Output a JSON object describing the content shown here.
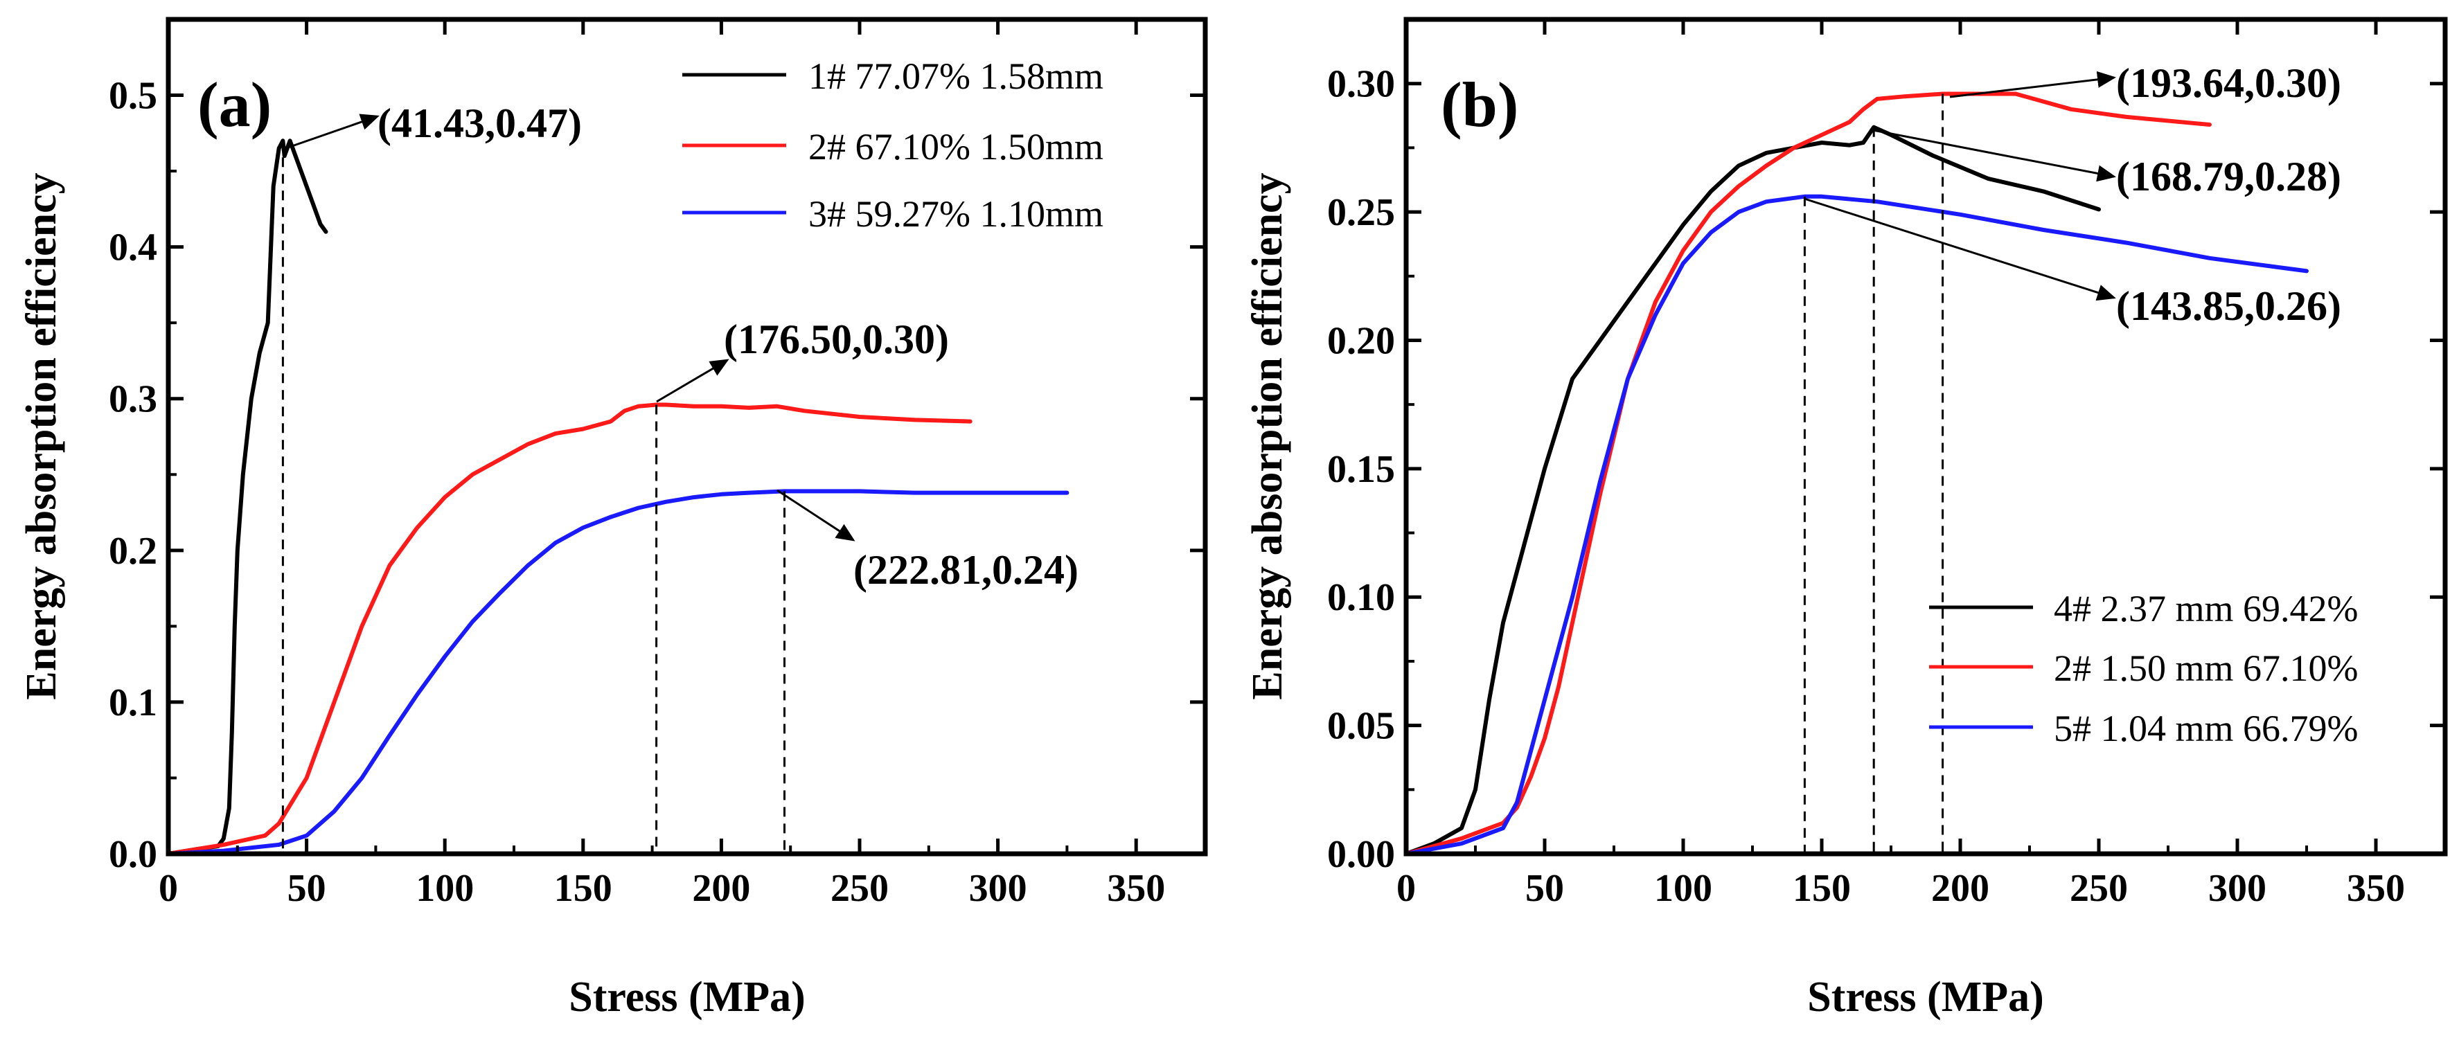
{
  "chart_data": [
    {
      "type": "line",
      "panel_label": "(a)",
      "xlabel": "Stress (MPa)",
      "ylabel": "Energy absorption efficiency",
      "xlim": [
        0,
        375
      ],
      "ylim": [
        0,
        0.55
      ],
      "xticks": [
        0,
        50,
        100,
        150,
        200,
        250,
        300,
        350
      ],
      "yticks": [
        0.0,
        0.1,
        0.2,
        0.3,
        0.4,
        0.5
      ],
      "x_tick_labels": [
        "0",
        "50",
        "100",
        "150",
        "200",
        "250",
        "300",
        "350"
      ],
      "y_tick_labels": [
        "0.0",
        "0.1",
        "0.2",
        "0.3",
        "0.4",
        "0.5"
      ],
      "legend_position": "top-right",
      "series": [
        {
          "name": "1# 77.07% 1.58mm",
          "color": "#000000",
          "x": [
            0,
            10,
            18,
            20,
            22,
            23,
            24,
            25,
            27,
            30,
            33,
            36,
            38,
            40,
            41.43,
            42,
            44,
            46,
            48,
            50,
            52,
            55,
            57
          ],
          "y": [
            0,
            0.003,
            0.005,
            0.01,
            0.03,
            0.08,
            0.15,
            0.2,
            0.25,
            0.3,
            0.33,
            0.35,
            0.44,
            0.465,
            0.47,
            0.46,
            0.47,
            0.46,
            0.45,
            0.44,
            0.43,
            0.415,
            0.41
          ]
        },
        {
          "name": "2# 67.10% 1.50mm",
          "color": "#ff1a1a",
          "x": [
            0,
            20,
            35,
            40,
            45,
            50,
            55,
            60,
            70,
            80,
            90,
            100,
            110,
            120,
            130,
            140,
            150,
            160,
            165,
            170,
            176.5,
            180,
            190,
            200,
            210,
            220,
            230,
            250,
            270,
            290
          ],
          "y": [
            0,
            0.006,
            0.012,
            0.02,
            0.035,
            0.05,
            0.075,
            0.1,
            0.15,
            0.19,
            0.215,
            0.235,
            0.25,
            0.26,
            0.27,
            0.277,
            0.28,
            0.285,
            0.292,
            0.295,
            0.296,
            0.296,
            0.295,
            0.295,
            0.294,
            0.295,
            0.292,
            0.288,
            0.286,
            0.285
          ]
        },
        {
          "name": "3# 59.27% 1.10mm",
          "color": "#1a1aff",
          "x": [
            0,
            20,
            40,
            50,
            60,
            70,
            80,
            90,
            100,
            110,
            120,
            130,
            140,
            150,
            160,
            170,
            180,
            190,
            200,
            210,
            222.81,
            230,
            250,
            270,
            290,
            310,
            325
          ],
          "y": [
            0,
            0.002,
            0.006,
            0.012,
            0.028,
            0.05,
            0.078,
            0.105,
            0.13,
            0.153,
            0.172,
            0.19,
            0.205,
            0.215,
            0.222,
            0.228,
            0.232,
            0.235,
            0.237,
            0.238,
            0.239,
            0.239,
            0.239,
            0.238,
            0.238,
            0.238,
            0.238
          ]
        }
      ],
      "annotations": [
        {
          "label": "(41.43,0.47)",
          "x": 41.43,
          "y": 0.47
        },
        {
          "label": "(176.50,0.30)",
          "x": 176.5,
          "y": 0.296
        },
        {
          "label": "(222.81,0.24)",
          "x": 222.81,
          "y": 0.239
        }
      ]
    },
    {
      "type": "line",
      "panel_label": "(b)",
      "xlabel": "Stress (MPa)",
      "ylabel": "Energy absorption efficiency",
      "xlim": [
        0,
        375
      ],
      "ylim": [
        0,
        0.325
      ],
      "xticks": [
        0,
        50,
        100,
        150,
        200,
        250,
        300,
        350
      ],
      "yticks": [
        0.0,
        0.05,
        0.1,
        0.15,
        0.2,
        0.25,
        0.3
      ],
      "x_tick_labels": [
        "0",
        "50",
        "100",
        "150",
        "200",
        "250",
        "300",
        "350"
      ],
      "y_tick_labels": [
        "0.00",
        "0.05",
        "0.10",
        "0.15",
        "0.20",
        "0.25",
        "0.30"
      ],
      "legend_position": "bottom-right",
      "series": [
        {
          "name": "4# 2.37 mm 69.42%",
          "color": "#000000",
          "x": [
            0,
            10,
            20,
            25,
            30,
            35,
            40,
            50,
            60,
            70,
            80,
            90,
            100,
            110,
            120,
            130,
            140,
            150,
            160,
            165,
            168.79,
            175,
            190,
            210,
            230,
            250
          ],
          "y": [
            0,
            0.004,
            0.01,
            0.025,
            0.06,
            0.09,
            0.11,
            0.15,
            0.185,
            0.2,
            0.215,
            0.23,
            0.245,
            0.258,
            0.268,
            0.273,
            0.275,
            0.277,
            0.276,
            0.277,
            0.283,
            0.28,
            0.272,
            0.263,
            0.258,
            0.251
          ]
        },
        {
          "name": "2# 1.50 mm 67.10%",
          "color": "#ff1a1a",
          "x": [
            0,
            20,
            35,
            40,
            45,
            50,
            55,
            60,
            70,
            80,
            90,
            100,
            110,
            120,
            130,
            140,
            150,
            160,
            165,
            170,
            180,
            193.64,
            200,
            220,
            240,
            260,
            290
          ],
          "y": [
            0,
            0.006,
            0.012,
            0.018,
            0.03,
            0.045,
            0.065,
            0.09,
            0.14,
            0.185,
            0.215,
            0.235,
            0.25,
            0.26,
            0.268,
            0.275,
            0.28,
            0.285,
            0.29,
            0.294,
            0.295,
            0.296,
            0.296,
            0.296,
            0.29,
            0.287,
            0.284
          ]
        },
        {
          "name": "5# 1.04 mm 66.79%",
          "color": "#1a1aff",
          "x": [
            0,
            20,
            35,
            40,
            45,
            50,
            55,
            60,
            70,
            80,
            90,
            100,
            110,
            120,
            130,
            143.85,
            150,
            170,
            200,
            230,
            260,
            290,
            325
          ],
          "y": [
            0,
            0.004,
            0.01,
            0.02,
            0.04,
            0.06,
            0.08,
            0.1,
            0.145,
            0.185,
            0.21,
            0.23,
            0.242,
            0.25,
            0.254,
            0.256,
            0.256,
            0.254,
            0.249,
            0.243,
            0.238,
            0.232,
            0.227
          ]
        }
      ],
      "annotations": [
        {
          "label": "(193.64,0.30)",
          "x": 193.64,
          "y": 0.296
        },
        {
          "label": "(168.79,0.28)",
          "x": 168.79,
          "y": 0.283
        },
        {
          "label": "(143.85,0.26)",
          "x": 143.85,
          "y": 0.256
        }
      ]
    }
  ]
}
